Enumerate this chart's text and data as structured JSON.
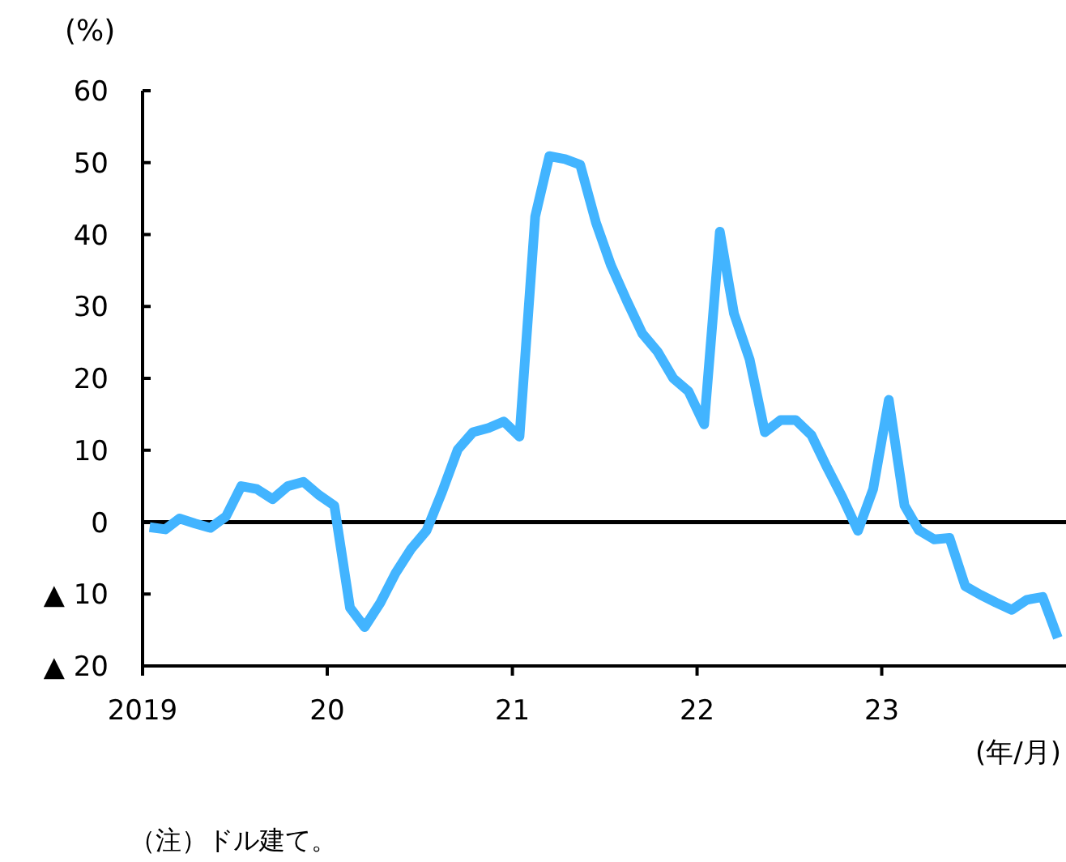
{
  "chart_data": {
    "type": "line",
    "ylabel": "(%)",
    "xlabel": "(年/月)",
    "annotations": [
      "（注）ドル建て。"
    ],
    "x": [
      "2019-01-15",
      "2019-02-15",
      "2019-03-15",
      "2019-04-15",
      "2019-05-15",
      "2019-06-15",
      "2019-07-15",
      "2019-08-15",
      "2019-09-15",
      "2019-10-15",
      "2019-11-15",
      "2019-12-15",
      "2020-01-15",
      "2020-02-15",
      "2020-03-15",
      "2020-04-15",
      "2020-05-15",
      "2020-06-15",
      "2020-07-15",
      "2020-08-15",
      "2020-09-15",
      "2020-10-15",
      "2020-11-15",
      "2020-12-15",
      "2021-01-15",
      "2021-02-15",
      "2021-03-15",
      "2021-04-15",
      "2021-05-15",
      "2021-06-15",
      "2021-07-15",
      "2021-08-15",
      "2021-09-15",
      "2021-10-15",
      "2021-11-15",
      "2021-12-15",
      "2022-01-15",
      "2022-02-15",
      "2022-03-15",
      "2022-04-15",
      "2022-05-15",
      "2022-06-15",
      "2022-07-15",
      "2022-08-15",
      "2022-09-15",
      "2022-10-15",
      "2022-11-15",
      "2022-12-15",
      "2023-01-15",
      "2023-02-15",
      "2023-03-15",
      "2023-04-15",
      "2023-05-15",
      "2023-06-15",
      "2023-07-15",
      "2023-08-15",
      "2023-09-15",
      "2023-10-15",
      "2023-11-15",
      "2023-12-15"
    ],
    "values": [
      -0.7,
      -1.0,
      0.5,
      -0.2,
      -0.8,
      0.8,
      5.0,
      4.6,
      3.2,
      5.0,
      5.6,
      3.8,
      2.3,
      -11.9,
      -14.6,
      -11.2,
      -7.1,
      -3.7,
      -1.2,
      4.2,
      10.1,
      12.5,
      13.1,
      14.0,
      11.9,
      42.5,
      50.9,
      50.5,
      49.7,
      41.7,
      35.7,
      30.8,
      26.2,
      23.7,
      20.0,
      18.2,
      13.6,
      40.4,
      29.0,
      22.6,
      12.5,
      14.2,
      14.2,
      12.1,
      7.6,
      3.5,
      -1.2,
      4.6,
      17.0,
      2.3,
      -1.1,
      -2.4,
      -2.2,
      -8.9,
      -10.1,
      -11.2,
      -12.2,
      -10.8,
      -10.4,
      -16.1
    ],
    "color": "#42b4ff",
    "xlim": [
      "2019-01-01",
      "2023-12-28"
    ],
    "xticks": [
      {
        "value": "2019-01-01",
        "label": "2019"
      },
      {
        "value": "2020-01-01",
        "label": "20"
      },
      {
        "value": "2021-01-01",
        "label": "21"
      },
      {
        "value": "2022-01-01",
        "label": "22"
      },
      {
        "value": "2023-01-01",
        "label": "23"
      }
    ],
    "ylim": [
      -20,
      60
    ],
    "yticks": [
      {
        "value": -20,
        "label": "▲ 20"
      },
      {
        "value": -10,
        "label": "▲ 10"
      },
      0,
      10,
      20,
      30,
      40,
      50,
      60
    ],
    "ref_lines": [
      {
        "axis": "y",
        "value": 0,
        "color": "#000000"
      }
    ],
    "grid": false
  }
}
